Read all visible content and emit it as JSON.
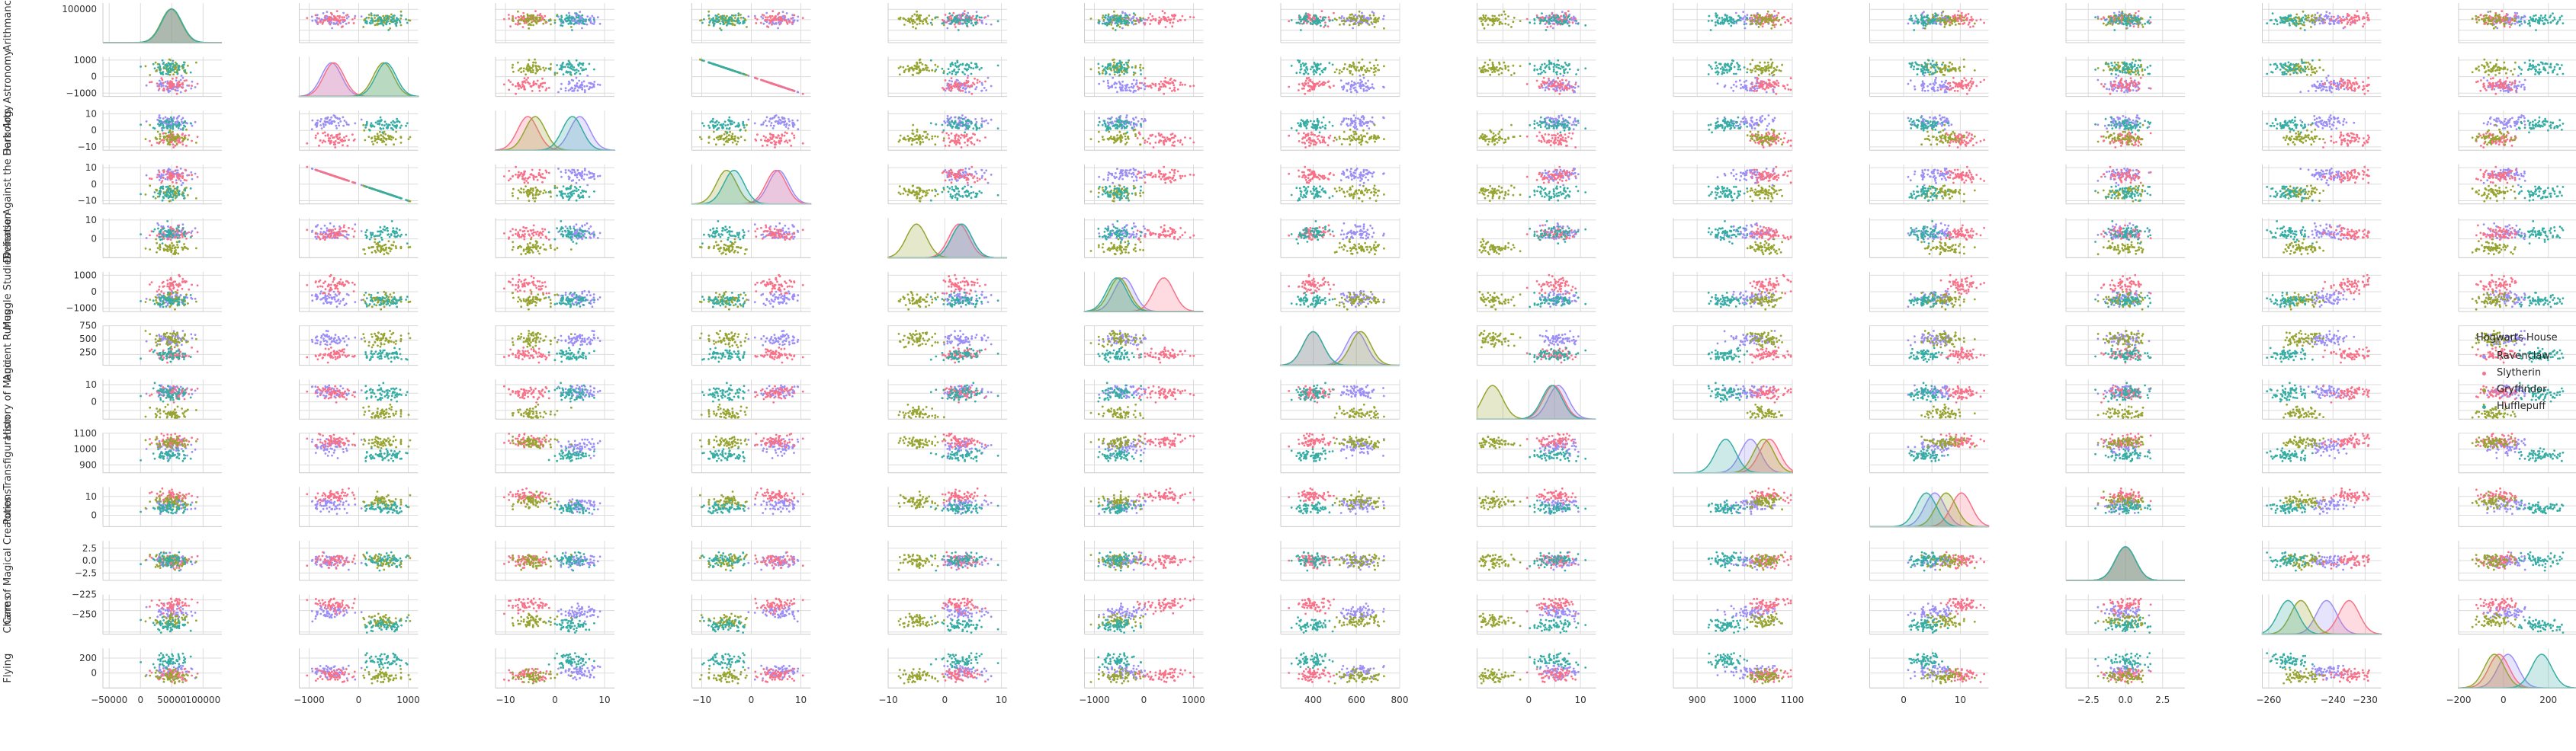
{
  "chart_data": {
    "type": "scatter",
    "subtype": "pairplot",
    "variables": [
      "Arithmancy",
      "Astronomy",
      "Herbology",
      "Defense Against the Dark Arts",
      "Divination",
      "Muggle Studies",
      "Ancient Runes",
      "History of Magic",
      "Transfiguration",
      "Potions",
      "Care of Magical Creatures",
      "Charms",
      "Flying"
    ],
    "ranges": [
      [
        -60000,
        130000
      ],
      [
        -1200,
        1200
      ],
      [
        -12,
        12
      ],
      [
        -12,
        12
      ],
      [
        -10,
        11
      ],
      [
        -1200,
        1200
      ],
      [
        250,
        800
      ],
      [
        -10,
        13
      ],
      [
        850,
        1100
      ],
      [
        -6,
        15
      ],
      [
        -4,
        4
      ],
      [
        -262,
        -225
      ],
      [
        -200,
        330
      ]
    ],
    "ticks": [
      {
        "values": [
          -50000,
          0,
          50000,
          100000
        ],
        "labels": [
          "−50000",
          "0",
          "50000",
          "100000"
        ]
      },
      {
        "values": [
          -1000,
          0,
          1000
        ],
        "labels": [
          "−1000",
          "0",
          "1000"
        ]
      },
      {
        "values": [
          -10,
          0,
          10
        ],
        "labels": [
          "−10",
          "0",
          "10"
        ]
      },
      {
        "values": [
          -10,
          0,
          10
        ],
        "labels": [
          "−10",
          "0",
          "10"
        ]
      },
      {
        "values": [
          -10,
          0,
          10
        ],
        "labels": [
          "−10",
          "0",
          "10"
        ]
      },
      {
        "values": [
          -1000,
          0,
          1000
        ],
        "labels": [
          "−1000",
          "0",
          "1000"
        ]
      },
      {
        "values": [
          400,
          600,
          800
        ],
        "labels": [
          "400",
          "600",
          "800"
        ]
      },
      {
        "values": [
          -5,
          0,
          5,
          10
        ],
        "labels": [
          "",
          "0",
          "",
          "10"
        ]
      },
      {
        "values": [
          900,
          1000,
          1100
        ],
        "labels": [
          "900",
          "1000",
          "1100"
        ]
      },
      {
        "values": [
          0,
          5,
          10
        ],
        "labels": [
          "0",
          "",
          "10"
        ]
      },
      {
        "values": [
          -2.5,
          0,
          2.5
        ],
        "labels": [
          "−2.5",
          "0.0",
          "2.5"
        ]
      },
      {
        "values": [
          -260,
          -240,
          -230
        ],
        "labels": [
          "−260",
          "−240",
          "−230"
        ]
      },
      {
        "values": [
          -200,
          0,
          200
        ],
        "labels": [
          "−200",
          "0",
          "200"
        ]
      }
    ],
    "ytick_labels_shown": [
      [
        "100000"
      ],
      [
        "1000",
        "0",
        "−1000"
      ],
      [
        "10",
        "0",
        "−10"
      ],
      [
        "10",
        "0",
        "−10"
      ],
      [
        "10",
        "0"
      ],
      [
        "1000",
        "0",
        "−1000"
      ],
      [
        "750",
        "500",
        "250"
      ],
      [
        "10",
        "0"
      ],
      [
        "1100",
        "1000",
        "900"
      ],
      [
        "10",
        "0"
      ],
      [
        "2.5",
        "0.0",
        "−2.5"
      ],
      [
        "−225",
        "−250"
      ],
      [
        "200",
        "0"
      ]
    ],
    "series": [
      {
        "name": "Ravenclaw",
        "color": "#9b8ef5",
        "means": [
          49500,
          -550,
          5,
          5.5,
          3,
          -400,
          600,
          5.7,
          1012,
          5.5,
          0,
          -242,
          20
        ]
      },
      {
        "name": "Slytherin",
        "color": "#f77189",
        "means": [
          49500,
          -500,
          -5.5,
          5,
          2.5,
          400,
          400,
          4.8,
          1052,
          10.2,
          0,
          -235,
          -20
        ]
      },
      {
        "name": "Gryffindor",
        "color": "#97a431",
        "means": [
          49000,
          500,
          -4,
          -5,
          -5,
          -500,
          620,
          -7,
          1040,
          7.5,
          0,
          -250,
          -40
        ]
      },
      {
        "name": "Hufflepuff",
        "color": "#36ada4",
        "means": [
          50000,
          550,
          3.5,
          -3.5,
          3,
          -550,
          400,
          4.5,
          960,
          4,
          0,
          -254,
          170
        ]
      }
    ],
    "points_per_series": 60,
    "diagonal": "kde",
    "grid": true,
    "legend_position": "right"
  },
  "legend": {
    "title": "Hogwarts House",
    "items": [
      "Ravenclaw",
      "Slytherin",
      "Gryffindor",
      "Hufflepuff"
    ]
  }
}
